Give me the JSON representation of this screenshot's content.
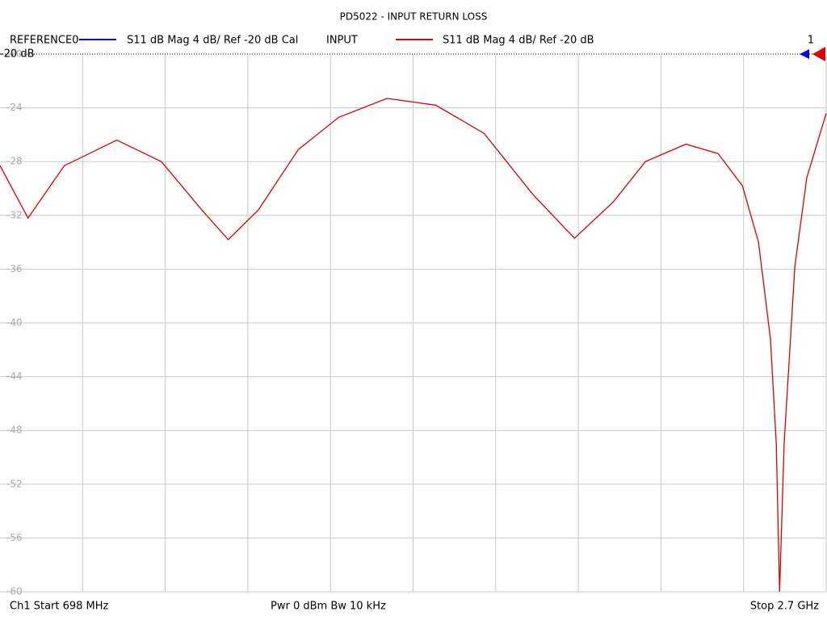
{
  "chart_data": {
    "type": "line",
    "title": "PD5022 - INPUT RETURN LOSS",
    "reference_label": "-20 dB",
    "marker_label": "1",
    "footer": {
      "start": "Ch1  Start  698 MHz",
      "power": "Pwr  0 dBm  Bw  10 kHz",
      "stop": "Stop  2.7 GHz"
    },
    "x": [
      698,
      766,
      854,
      981,
      1089,
      1187,
      1251,
      1324,
      1421,
      1519,
      1636,
      1754,
      1871,
      1988,
      2090,
      2184,
      2262,
      2360,
      2438,
      2497,
      2536,
      2565,
      2579,
      2587,
      2598,
      2624,
      2653,
      2700
    ],
    "series": [
      {
        "name": "REFERENCE0",
        "label": "S11  dB Mag  4 dB/ Ref -20 dB  Cal",
        "color": "#0000ff",
        "values": [
          null,
          null,
          null,
          null,
          null,
          null,
          null,
          null,
          null,
          null,
          null,
          null,
          null,
          null,
          null,
          null,
          null,
          null,
          null,
          null,
          null,
          null,
          null,
          null,
          null,
          null,
          null,
          null
        ]
      },
      {
        "name": "INPUT",
        "label": "S11  dB Mag  4 dB/ Ref -20 dB",
        "color": "#e00000",
        "values": [
          -28.3,
          -32.2,
          -28.3,
          -26.4,
          -28.0,
          -31.6,
          -33.8,
          -31.6,
          -27.1,
          -24.7,
          -23.3,
          -23.8,
          -25.9,
          -30.4,
          -33.7,
          -31.0,
          -28.0,
          -26.7,
          -27.4,
          -29.8,
          -34.0,
          -41.2,
          -49.0,
          -60,
          -49.0,
          -35.8,
          -29.2,
          -24.4
        ]
      }
    ],
    "xlim": [
      698,
      2700
    ],
    "ylim": [
      -60,
      -20
    ],
    "yticks": [
      -20,
      -24,
      -28,
      -32,
      -36,
      -40,
      -44,
      -48,
      -52,
      -56,
      -60
    ],
    "grid": true
  }
}
